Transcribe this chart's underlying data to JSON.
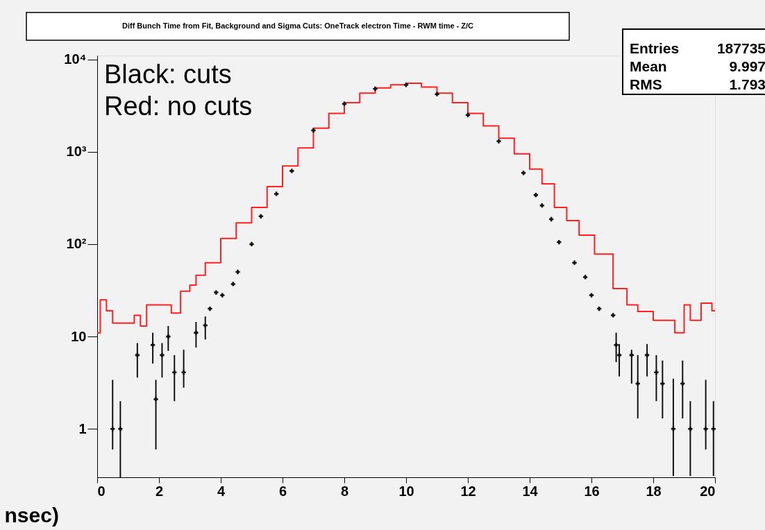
{
  "chart_data": {
    "type": "step",
    "title": "Diff Bunch Time from Fit, Background and Sigma Cuts: OneTrack electron Time - RWM time - Z/C",
    "xlabel": "nsec)",
    "annotations": [
      "Black: cuts",
      "Red: no cuts",
      "Entries",
      "187735",
      "Mean",
      "9.997",
      "RMS",
      "1.793"
    ],
    "xlim": [
      0,
      20
    ],
    "xticks": [
      0,
      2,
      4,
      6,
      8,
      10,
      12,
      14,
      16,
      18,
      20
    ],
    "ylim": [
      0.3,
      11000
    ],
    "yticks": [
      1,
      10,
      {
        "value": 100,
        "label": "10²"
      },
      {
        "value": 1000,
        "label": "10³"
      },
      {
        "value": 10000,
        "label": "10⁴"
      }
    ],
    "log": true,
    "grid": false,
    "series": [
      {
        "color": "#ff2020",
        "x": [
          0,
          0.1,
          0.3,
          0.5,
          1.0,
          1.2,
          1.4,
          1.6,
          2.0,
          2.4,
          2.7,
          3.0,
          3.2,
          3.5,
          4.0,
          4.5,
          5.0,
          5.5,
          6.0,
          6.5,
          7.0,
          7.5,
          8.0,
          8.5,
          9.0,
          9.5,
          10.0,
          10.5,
          11.0,
          11.5,
          12.0,
          12.5,
          13.0,
          13.5,
          14.0,
          14.4,
          14.8,
          15.2,
          15.6,
          16.1,
          16.7,
          17.15,
          17.5,
          18.0,
          18.7,
          19.0,
          19.2,
          19.55,
          19.9,
          20.0
        ],
        "values": [
          11,
          25,
          19,
          14,
          14,
          17,
          13,
          22,
          22,
          18,
          31,
          36,
          46,
          63,
          115,
          170,
          250,
          420,
          700,
          1100,
          1800,
          2600,
          3400,
          4300,
          4900,
          5300,
          5500,
          5000,
          4300,
          3400,
          2600,
          1900,
          1400,
          950,
          650,
          450,
          250,
          180,
          125,
          78,
          33,
          22,
          18.7,
          15,
          11,
          22,
          15,
          23,
          19,
          19
        ]
      },
      {
        "type": "scatter",
        "color": "#111111",
        "marker": "cross",
        "x": [
          0.5,
          0.75,
          1.3,
          1.8,
          1.9,
          2.1,
          2.3,
          2.5,
          2.8,
          3.2,
          3.5,
          3.65,
          3.85,
          4.05,
          4.4,
          4.55,
          5.0,
          5.3,
          5.8,
          6.3,
          7.0,
          8.0,
          9.0,
          10.0,
          11.0,
          12.0,
          13.0,
          13.8,
          14.2,
          14.4,
          14.7,
          14.95,
          15.45,
          15.8,
          16.0,
          16.25,
          16.7,
          16.8,
          16.9,
          17.3,
          17.5,
          17.8,
          18.1,
          18.3,
          18.65,
          18.95,
          19.2,
          19.7,
          19.95
        ],
        "values": [
          1.0,
          1.0,
          6.3,
          8.1,
          2.1,
          6.3,
          10,
          4.1,
          4.1,
          11,
          13.2,
          20,
          30,
          28,
          37,
          50,
          100,
          200,
          350,
          620,
          1700,
          3300,
          4800,
          5300,
          4200,
          2500,
          1300,
          590,
          340,
          262,
          186,
          105,
          63,
          44,
          28,
          20,
          17,
          8.1,
          6.3,
          6.3,
          3.1,
          6.3,
          4.1,
          3.1,
          1.0,
          3.1,
          1.0,
          1.0,
          1.0
        ],
        "errors": [
          [
            0.6,
            3.4
          ],
          [
            0.3,
            2.0
          ],
          [
            3.6,
            8.5
          ],
          [
            5.1,
            11
          ],
          [
            0.6,
            3.4
          ],
          [
            3.6,
            8.5
          ],
          [
            7,
            13
          ],
          [
            2.0,
            6.3
          ],
          [
            2.8,
            7.2
          ],
          [
            7.6,
            14.4
          ],
          [
            9.3,
            16.5
          ],
          null,
          null,
          null,
          null,
          null,
          null,
          null,
          null,
          null,
          null,
          null,
          null,
          null,
          null,
          null,
          null,
          null,
          null,
          null,
          null,
          null,
          null,
          null,
          null,
          null,
          null,
          [
            5.3,
            11
          ],
          [
            3.7,
            8.3
          ],
          [
            3.1,
            7.2
          ],
          [
            1.3,
            6.3
          ],
          [
            3.7,
            8.3
          ],
          [
            2.0,
            6.3
          ],
          [
            1.3,
            5.5
          ],
          [
            0.31,
            3.5
          ],
          [
            1.3,
            5.5
          ],
          [
            0.31,
            2.0
          ],
          [
            0.6,
            3.4
          ],
          [
            0.31,
            2.0
          ]
        ]
      }
    ]
  }
}
